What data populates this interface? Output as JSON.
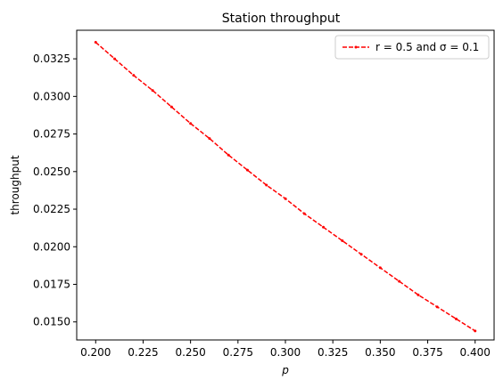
{
  "chart_data": {
    "type": "line",
    "title": "Station throughput",
    "xlabel": "p",
    "ylabel": "throughput",
    "xlim": [
      0.19,
      0.41
    ],
    "ylim": [
      0.0138,
      0.0344
    ],
    "x_ticks": [
      "0.200",
      "0.225",
      "0.250",
      "0.275",
      "0.300",
      "0.325",
      "0.350",
      "0.375",
      "0.400"
    ],
    "x_tick_values": [
      0.2,
      0.225,
      0.25,
      0.275,
      0.3,
      0.325,
      0.35,
      0.375,
      0.4
    ],
    "y_ticks": [
      "0.0150",
      "0.0175",
      "0.0200",
      "0.0225",
      "0.0250",
      "0.0275",
      "0.0300",
      "0.0325"
    ],
    "y_tick_values": [
      0.015,
      0.0175,
      0.02,
      0.0225,
      0.025,
      0.0275,
      0.03,
      0.0325
    ],
    "grid": false,
    "legend_position": "top-right",
    "series": [
      {
        "name": "r = 0.5 and σ = 0.1",
        "color": "#ff0000",
        "line_style": "dashed",
        "marker": "point",
        "x": [
          0.2,
          0.21,
          0.22,
          0.23,
          0.24,
          0.25,
          0.26,
          0.27,
          0.28,
          0.29,
          0.3,
          0.31,
          0.32,
          0.33,
          0.34,
          0.35,
          0.36,
          0.37,
          0.38,
          0.39,
          0.4
        ],
        "y": [
          0.0336,
          0.0325,
          0.0314,
          0.0304,
          0.0293,
          0.0282,
          0.0272,
          0.0261,
          0.0251,
          0.0241,
          0.0232,
          0.0222,
          0.0213,
          0.0204,
          0.0195,
          0.0186,
          0.0177,
          0.0168,
          0.016,
          0.0152,
          0.0144
        ]
      }
    ]
  }
}
